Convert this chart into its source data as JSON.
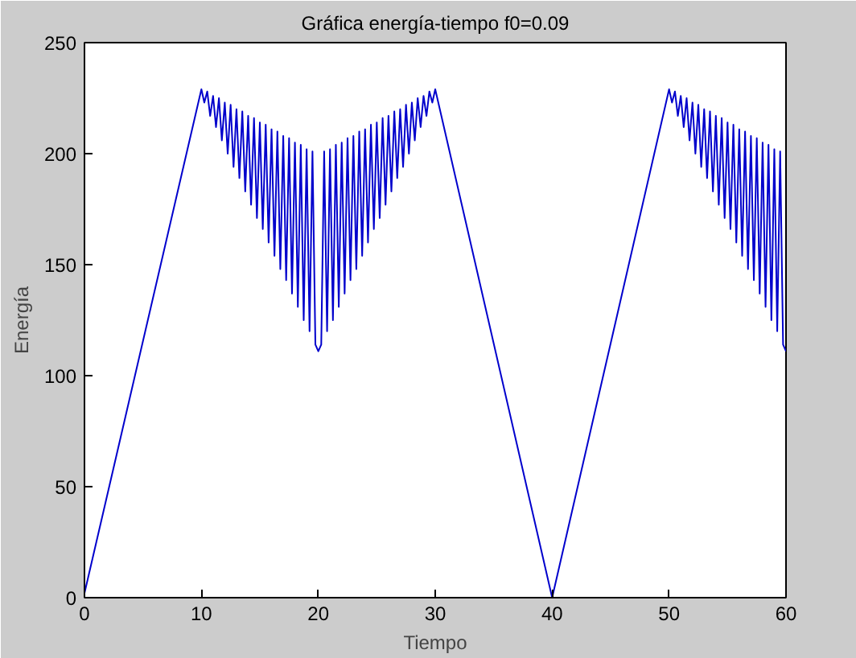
{
  "chart_data": {
    "type": "line",
    "title": "Gráfica energía-tiempo f0=0.09",
    "xlabel": "Tiempo",
    "ylabel": "Energía",
    "x": [
      0,
      10,
      10.25,
      10.5,
      10.75,
      11,
      11.25,
      11.5,
      11.75,
      12,
      12.25,
      12.5,
      12.75,
      13,
      13.25,
      13.5,
      13.75,
      14,
      14.25,
      14.5,
      14.75,
      15,
      15.25,
      15.5,
      15.75,
      16,
      16.25,
      16.5,
      16.75,
      17,
      17.25,
      17.5,
      17.75,
      18,
      18.25,
      18.5,
      18.75,
      19,
      19.25,
      19.5,
      19.75,
      20,
      20.25,
      20.5,
      20.75,
      21,
      21.25,
      21.5,
      21.75,
      22,
      22.25,
      22.5,
      22.75,
      23,
      23.25,
      23.5,
      23.75,
      24,
      24.25,
      24.5,
      24.75,
      25,
      25.25,
      25.5,
      25.75,
      26,
      26.25,
      26.5,
      26.75,
      27,
      27.25,
      27.5,
      27.75,
      28,
      28.25,
      28.5,
      28.75,
      29,
      29.25,
      29.5,
      29.75,
      30,
      40,
      50,
      50.25,
      50.5,
      50.75,
      51,
      51.25,
      51.5,
      51.75,
      52,
      52.25,
      52.5,
      52.75,
      53,
      53.25,
      53.5,
      53.75,
      54,
      54.25,
      54.5,
      54.75,
      55,
      55.25,
      55.5,
      55.75,
      56,
      56.25,
      56.5,
      56.75,
      57,
      57.25,
      57.5,
      57.75,
      58,
      58.25,
      58.5,
      58.75,
      59,
      59.25,
      59.5,
      59.75,
      60
    ],
    "series": [
      {
        "color": "#0000cc",
        "values": [
          2,
          229,
          223,
          228,
          217,
          226,
          212,
          225,
          206,
          223,
          200,
          222,
          194,
          220,
          189,
          219,
          183,
          217,
          177,
          216,
          171,
          214,
          166,
          213,
          160,
          211,
          154,
          210,
          148,
          208,
          143,
          207,
          137,
          205,
          131,
          204,
          125,
          202,
          120,
          201,
          114,
          111,
          114,
          201,
          120,
          202,
          125,
          204,
          131,
          205,
          137,
          207,
          143,
          208,
          148,
          210,
          154,
          211,
          160,
          213,
          166,
          214,
          171,
          216,
          177,
          217,
          183,
          219,
          189,
          220,
          194,
          222,
          200,
          223,
          206,
          225,
          212,
          226,
          217,
          228,
          223,
          229,
          0,
          229,
          223,
          228,
          217,
          226,
          212,
          225,
          206,
          223,
          200,
          222,
          194,
          220,
          189,
          219,
          183,
          217,
          177,
          216,
          171,
          214,
          166,
          213,
          160,
          211,
          154,
          210,
          148,
          208,
          143,
          207,
          137,
          205,
          131,
          204,
          125,
          202,
          120,
          201,
          114,
          111
        ]
      }
    ],
    "xlim": [
      0,
      60
    ],
    "ylim": [
      0,
      250
    ],
    "xticks": [
      0,
      10,
      20,
      30,
      40,
      50,
      60
    ],
    "yticks": [
      0,
      50,
      100,
      150,
      200,
      250
    ],
    "grid": false,
    "marker": "none",
    "line_style": "solid"
  }
}
